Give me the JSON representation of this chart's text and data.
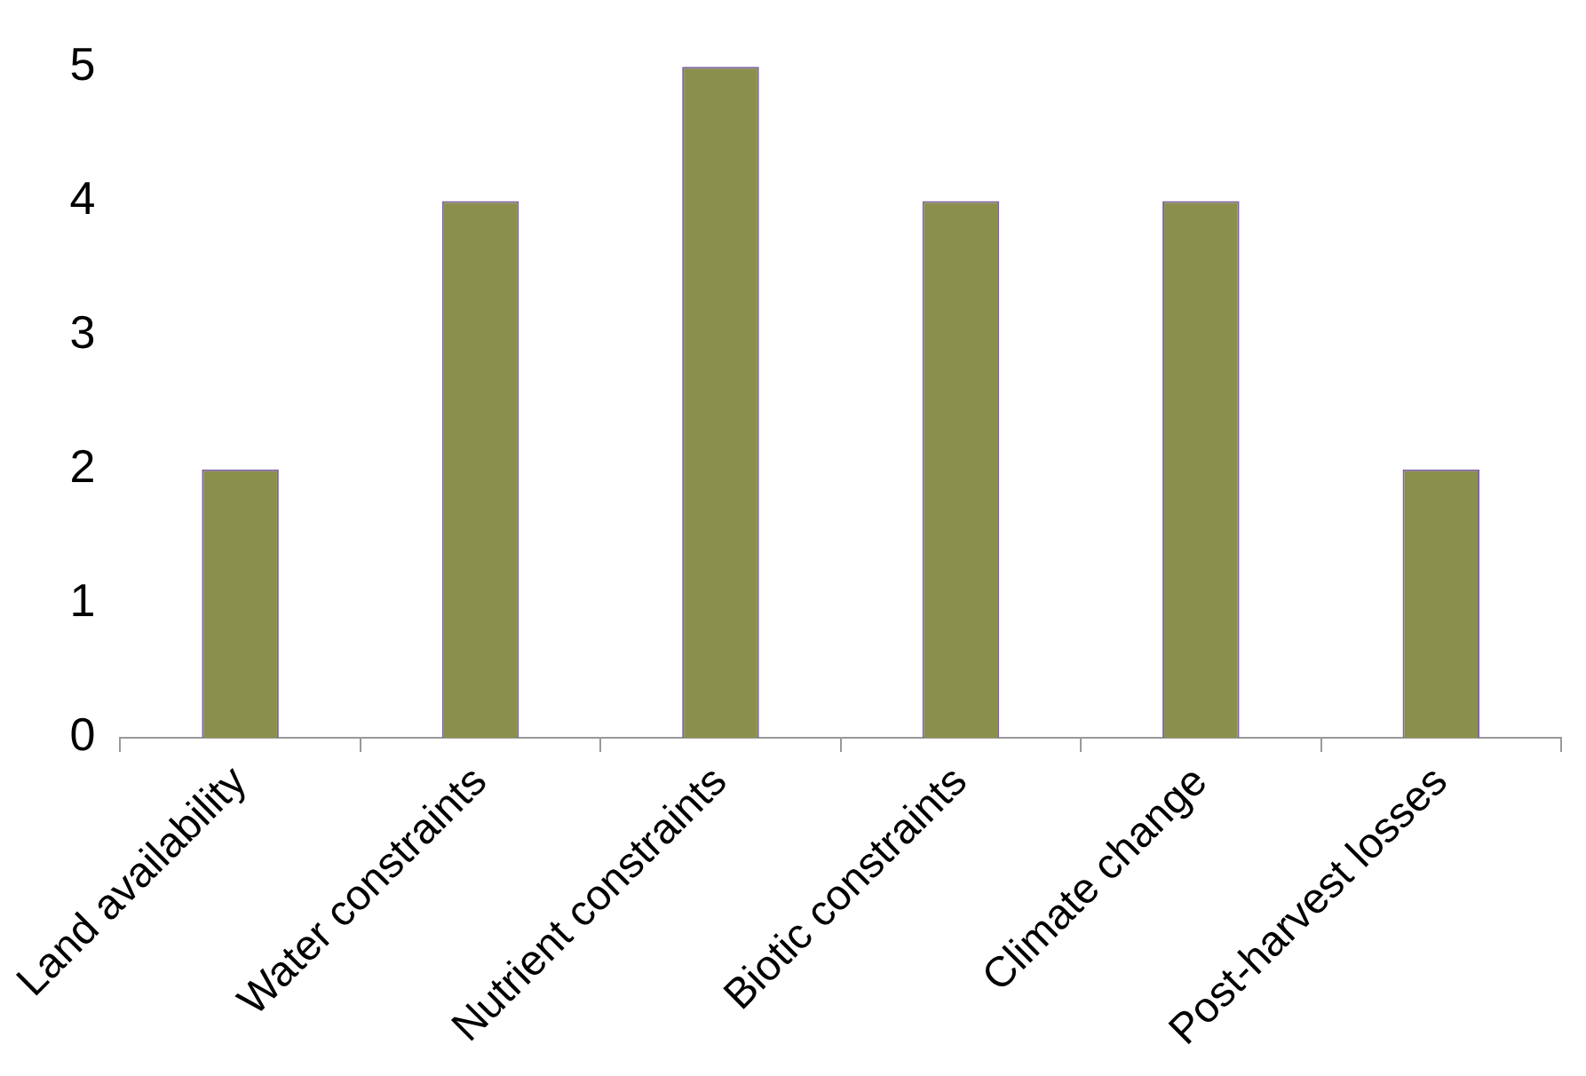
{
  "chart_data": {
    "type": "bar",
    "categories": [
      "Land availability",
      "Water constraints",
      "Nutrient constraints",
      "Biotic constraints",
      "Climate change",
      "Post-harvest losses"
    ],
    "values": [
      2,
      4,
      5,
      4,
      4,
      2
    ],
    "color": "#8a8f4c",
    "ylim": [
      0,
      5
    ],
    "yticks": [
      0,
      1,
      2,
      3,
      4,
      5
    ],
    "grid": false,
    "legend": false
  }
}
